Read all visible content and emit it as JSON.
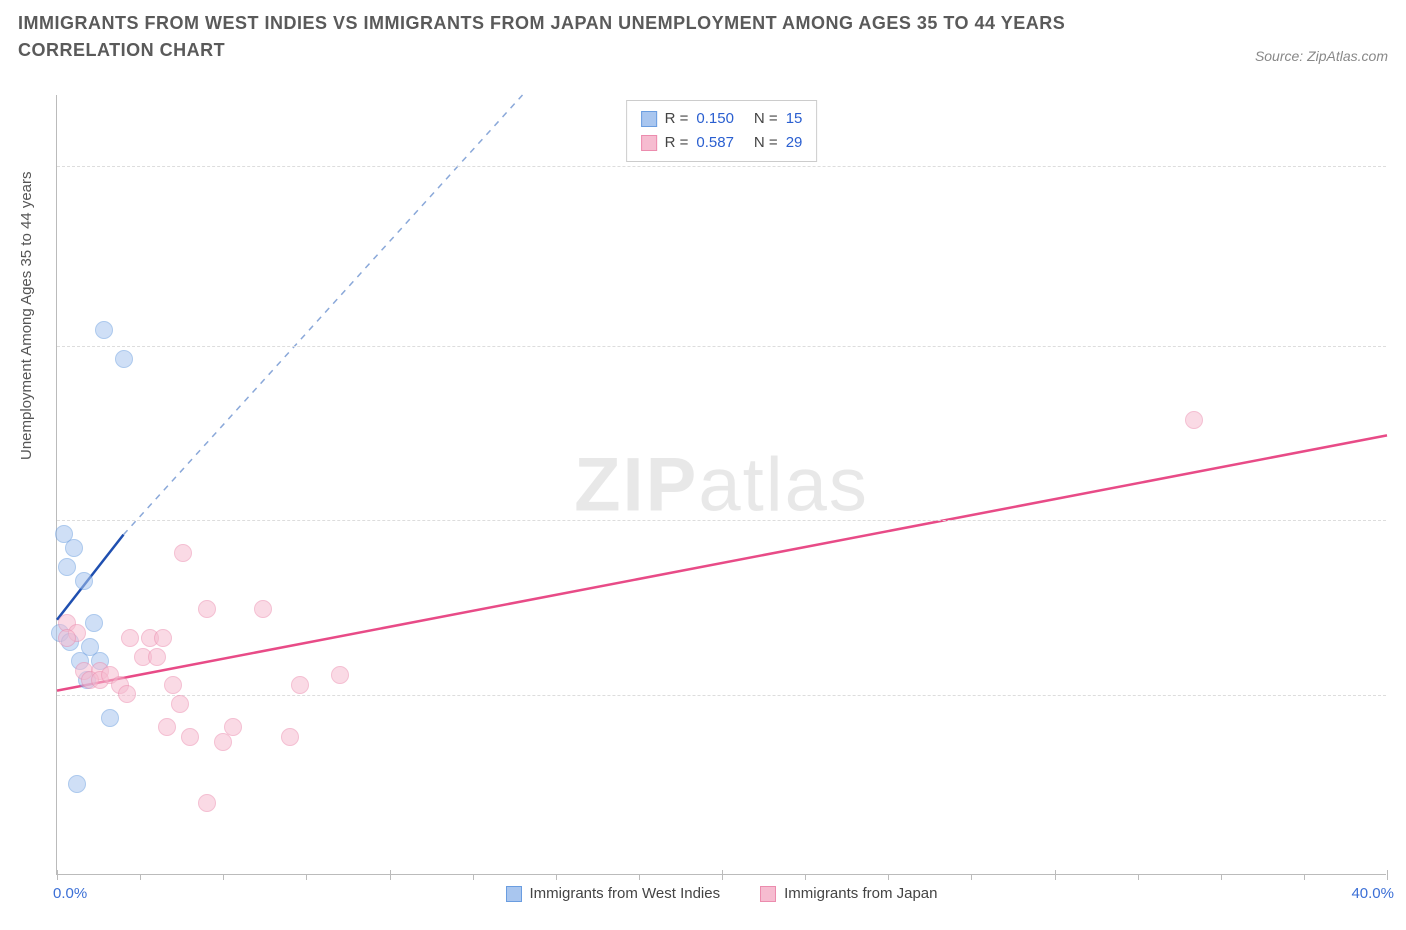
{
  "title": "IMMIGRANTS FROM WEST INDIES VS IMMIGRANTS FROM JAPAN UNEMPLOYMENT AMONG AGES 35 TO 44 YEARS CORRELATION CHART",
  "source_label": "Source:",
  "source_name": "ZipAtlas.com",
  "watermark_bold": "ZIP",
  "watermark_light": "atlas",
  "yaxis_title": "Unemployment Among Ages 35 to 44 years",
  "chart": {
    "type": "scatter",
    "background_color": "#ffffff",
    "grid_color": "#dddddd",
    "axis_color": "#bbbbbb",
    "tick_label_color": "#3b6fd6",
    "xlim": [
      0,
      40
    ],
    "ylim": [
      0,
      16.5
    ],
    "yticks": [
      {
        "value": 3.8,
        "label": "3.8%"
      },
      {
        "value": 7.5,
        "label": "7.5%"
      },
      {
        "value": 11.2,
        "label": "11.2%"
      },
      {
        "value": 15.0,
        "label": "15.0%"
      }
    ],
    "xticks_major": [
      0,
      10,
      20,
      30,
      40
    ],
    "xticks_minor": [
      2.5,
      5,
      7.5,
      12.5,
      15,
      17.5,
      22.5,
      25,
      27.5,
      32.5,
      35,
      37.5
    ],
    "xaxis_start_label": "0.0%",
    "xaxis_end_label": "40.0%",
    "point_radius": 9,
    "series": [
      {
        "name": "Immigrants from West Indies",
        "fill_color": "#a9c6ef",
        "fill_opacity": 0.55,
        "stroke_color": "#6a9de0",
        "line_color": "#1f4fb0",
        "dash_color": "#8aa8d9",
        "R": "0.150",
        "N": "15",
        "trend_solid": {
          "x1": 0,
          "y1": 5.4,
          "x2": 2.0,
          "y2": 7.2
        },
        "trend_dash": {
          "x1": 2.0,
          "y1": 7.2,
          "x2": 14.0,
          "y2": 16.5
        },
        "points": [
          {
            "x": 0.2,
            "y": 7.2
          },
          {
            "x": 0.5,
            "y": 6.9
          },
          {
            "x": 0.3,
            "y": 6.5
          },
          {
            "x": 0.8,
            "y": 6.2
          },
          {
            "x": 0.1,
            "y": 5.1
          },
          {
            "x": 0.4,
            "y": 4.9
          },
          {
            "x": 1.0,
            "y": 4.8
          },
          {
            "x": 0.7,
            "y": 4.5
          },
          {
            "x": 1.3,
            "y": 4.5
          },
          {
            "x": 0.9,
            "y": 4.1
          },
          {
            "x": 1.6,
            "y": 3.3
          },
          {
            "x": 0.6,
            "y": 1.9
          },
          {
            "x": 1.4,
            "y": 11.5
          },
          {
            "x": 2.0,
            "y": 10.9
          },
          {
            "x": 1.1,
            "y": 5.3
          }
        ]
      },
      {
        "name": "Immigrants from Japan",
        "fill_color": "#f6bcd0",
        "fill_opacity": 0.55,
        "stroke_color": "#ec8cae",
        "line_color": "#e84b87",
        "R": "0.587",
        "N": "29",
        "trend_solid": {
          "x1": 0,
          "y1": 3.9,
          "x2": 40,
          "y2": 9.3
        },
        "points": [
          {
            "x": 0.3,
            "y": 5.3
          },
          {
            "x": 0.6,
            "y": 5.1
          },
          {
            "x": 0.3,
            "y": 5.0
          },
          {
            "x": 0.8,
            "y": 4.3
          },
          {
            "x": 1.3,
            "y": 4.3
          },
          {
            "x": 1.0,
            "y": 4.1
          },
          {
            "x": 1.3,
            "y": 4.1
          },
          {
            "x": 1.6,
            "y": 4.2
          },
          {
            "x": 1.9,
            "y": 4.0
          },
          {
            "x": 2.1,
            "y": 3.8
          },
          {
            "x": 2.6,
            "y": 4.6
          },
          {
            "x": 2.2,
            "y": 5.0
          },
          {
            "x": 2.8,
            "y": 5.0
          },
          {
            "x": 3.2,
            "y": 5.0
          },
          {
            "x": 3.0,
            "y": 4.6
          },
          {
            "x": 3.5,
            "y": 4.0
          },
          {
            "x": 3.8,
            "y": 6.8
          },
          {
            "x": 4.5,
            "y": 5.6
          },
          {
            "x": 6.2,
            "y": 5.6
          },
          {
            "x": 3.3,
            "y": 3.1
          },
          {
            "x": 4.0,
            "y": 2.9
          },
          {
            "x": 5.3,
            "y": 3.1
          },
          {
            "x": 7.0,
            "y": 2.9
          },
          {
            "x": 7.3,
            "y": 4.0
          },
          {
            "x": 8.5,
            "y": 4.2
          },
          {
            "x": 4.5,
            "y": 1.5
          },
          {
            "x": 5.0,
            "y": 2.8
          },
          {
            "x": 3.7,
            "y": 3.6
          },
          {
            "x": 34.2,
            "y": 9.6
          }
        ]
      }
    ]
  },
  "legend_bottom": [
    {
      "label": "Immigrants from West Indies",
      "fill": "#a9c6ef",
      "stroke": "#6a9de0"
    },
    {
      "label": "Immigrants from Japan",
      "fill": "#f6bcd0",
      "stroke": "#ec8cae"
    }
  ]
}
